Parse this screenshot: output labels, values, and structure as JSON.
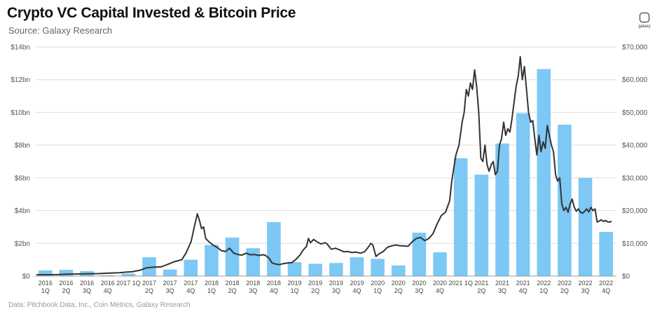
{
  "header": {
    "title": "Crypto VC Capital Invested & Bitcoin Price",
    "subtitle": "Source: Galaxy Research",
    "logo_text": "galaxy"
  },
  "footnote": "Data: Pitchbook Data, Inc., Coin Metrics, Galaxy Research",
  "colors": {
    "bar": "#7dc8f5",
    "line": "#333333",
    "grid": "#dddddd"
  },
  "chart_data": {
    "type": "bar",
    "title": "Crypto VC Capital Invested & Bitcoin Price",
    "subtitle": "Source: Galaxy Research",
    "y_left_ticks": [
      "$0",
      "$2bn",
      "$4bn",
      "$6bn",
      "$8bn",
      "$10bn",
      "$12bn",
      "$14bn"
    ],
    "y_right_ticks": [
      "$0",
      "$10,000",
      "$20,000",
      "$30,000",
      "$40,000",
      "$50,000",
      "$60,000",
      "$70,000"
    ],
    "ylim_left": [
      0,
      14
    ],
    "ylim_right": [
      0,
      70000
    ],
    "grid": true,
    "categories": [
      [
        "2016",
        "1Q"
      ],
      [
        "2016",
        "2Q"
      ],
      [
        "2016",
        "3Q"
      ],
      [
        "2016",
        "4Q"
      ],
      [
        "2017 1Q",
        ""
      ],
      [
        "2017",
        "2Q"
      ],
      [
        "2017",
        "3Q"
      ],
      [
        "2017",
        "4Q"
      ],
      [
        "2018",
        "1Q"
      ],
      [
        "2018",
        "2Q"
      ],
      [
        "2018",
        "3Q"
      ],
      [
        "2018",
        "4Q"
      ],
      [
        "2019",
        "1Q"
      ],
      [
        "2019",
        "2Q"
      ],
      [
        "2019",
        "3Q"
      ],
      [
        "2019",
        "4Q"
      ],
      [
        "2020",
        "1Q"
      ],
      [
        "2020",
        "2Q"
      ],
      [
        "2020",
        "3Q"
      ],
      [
        "2020",
        "4Q"
      ],
      [
        "2021 1Q",
        ""
      ],
      [
        "2021",
        "2Q"
      ],
      [
        "2021",
        "3Q"
      ],
      [
        "2021",
        "4Q"
      ],
      [
        "2022",
        "1Q"
      ],
      [
        "2022",
        "2Q"
      ],
      [
        "2022",
        "3Q"
      ],
      [
        "2022",
        "4Q"
      ]
    ],
    "series": [
      {
        "axis": "left",
        "kind": "bar",
        "values": [
          0.35,
          0.38,
          0.3,
          0.05,
          0.15,
          1.15,
          0.4,
          1.0,
          1.9,
          2.35,
          1.7,
          3.3,
          0.85,
          0.75,
          0.8,
          1.15,
          1.05,
          0.65,
          2.65,
          1.45,
          7.2,
          6.2,
          8.1,
          9.95,
          12.65,
          9.25,
          6.0,
          2.7
        ]
      },
      {
        "axis": "right",
        "kind": "line",
        "points": [
          [
            0.0,
            400
          ],
          [
            0.5,
            420
          ],
          [
            1.0,
            450
          ],
          [
            1.5,
            600
          ],
          [
            2.0,
            650
          ],
          [
            2.5,
            700
          ],
          [
            3.0,
            750
          ],
          [
            3.5,
            900
          ],
          [
            4.0,
            1000
          ],
          [
            4.3,
            1200
          ],
          [
            4.6,
            1300
          ],
          [
            5.0,
            1800
          ],
          [
            5.3,
            2500
          ],
          [
            5.6,
            2700
          ],
          [
            6.0,
            2800
          ],
          [
            6.3,
            3500
          ],
          [
            6.6,
            4300
          ],
          [
            7.0,
            5000
          ],
          [
            7.2,
            7000
          ],
          [
            7.45,
            10500
          ],
          [
            7.6,
            15000
          ],
          [
            7.75,
            19000
          ],
          [
            7.85,
            17000
          ],
          [
            7.95,
            14500
          ],
          [
            8.05,
            15000
          ],
          [
            8.15,
            11500
          ],
          [
            8.3,
            10500
          ],
          [
            8.5,
            9500
          ],
          [
            8.7,
            8800
          ],
          [
            8.9,
            7800
          ],
          [
            9.1,
            7500
          ],
          [
            9.3,
            8500
          ],
          [
            9.5,
            7000
          ],
          [
            9.7,
            6600
          ],
          [
            9.9,
            6400
          ],
          [
            10.1,
            7000
          ],
          [
            10.3,
            6500
          ],
          [
            10.5,
            6600
          ],
          [
            10.7,
            6300
          ],
          [
            10.9,
            6500
          ],
          [
            11.0,
            6400
          ],
          [
            11.2,
            5500
          ],
          [
            11.35,
            4000
          ],
          [
            11.5,
            3700
          ],
          [
            11.7,
            3500
          ],
          [
            11.9,
            3800
          ],
          [
            12.1,
            4000
          ],
          [
            12.3,
            4100
          ],
          [
            12.5,
            5100
          ],
          [
            12.7,
            6500
          ],
          [
            12.85,
            8000
          ],
          [
            13.0,
            9000
          ],
          [
            13.1,
            11500
          ],
          [
            13.2,
            10200
          ],
          [
            13.35,
            11200
          ],
          [
            13.5,
            10500
          ],
          [
            13.7,
            9800
          ],
          [
            13.9,
            10200
          ],
          [
            14.0,
            9800
          ],
          [
            14.2,
            8200
          ],
          [
            14.4,
            8500
          ],
          [
            14.6,
            8000
          ],
          [
            14.8,
            7400
          ],
          [
            15.0,
            7500
          ],
          [
            15.2,
            7200
          ],
          [
            15.4,
            7300
          ],
          [
            15.6,
            7000
          ],
          [
            15.8,
            7400
          ],
          [
            16.0,
            9000
          ],
          [
            16.1,
            10000
          ],
          [
            16.2,
            9500
          ],
          [
            16.35,
            6000
          ],
          [
            16.5,
            6800
          ],
          [
            16.7,
            7500
          ],
          [
            16.9,
            8800
          ],
          [
            17.1,
            9200
          ],
          [
            17.3,
            9500
          ],
          [
            17.5,
            9300
          ],
          [
            17.7,
            9200
          ],
          [
            17.9,
            9100
          ],
          [
            18.1,
            10500
          ],
          [
            18.3,
            11500
          ],
          [
            18.5,
            11800
          ],
          [
            18.7,
            10800
          ],
          [
            18.9,
            11500
          ],
          [
            19.1,
            13000
          ],
          [
            19.3,
            16000
          ],
          [
            19.5,
            18500
          ],
          [
            19.7,
            19500
          ],
          [
            19.9,
            23000
          ],
          [
            20.0,
            29000
          ],
          [
            20.1,
            33000
          ],
          [
            20.2,
            37000
          ],
          [
            20.35,
            40000
          ],
          [
            20.5,
            47000
          ],
          [
            20.6,
            50000
          ],
          [
            20.7,
            57000
          ],
          [
            20.8,
            55000
          ],
          [
            20.9,
            59000
          ],
          [
            21.0,
            57000
          ],
          [
            21.1,
            63000
          ],
          [
            21.2,
            58000
          ],
          [
            21.3,
            50000
          ],
          [
            21.4,
            36000
          ],
          [
            21.5,
            35000
          ],
          [
            21.6,
            40000
          ],
          [
            21.7,
            34000
          ],
          [
            21.8,
            32000
          ],
          [
            21.9,
            34000
          ],
          [
            22.0,
            35000
          ],
          [
            22.1,
            31000
          ],
          [
            22.2,
            32000
          ],
          [
            22.3,
            40000
          ],
          [
            22.4,
            42000
          ],
          [
            22.5,
            47000
          ],
          [
            22.6,
            43000
          ],
          [
            22.7,
            45000
          ],
          [
            22.8,
            44000
          ],
          [
            22.9,
            48000
          ],
          [
            23.0,
            53000
          ],
          [
            23.1,
            58000
          ],
          [
            23.2,
            61000
          ],
          [
            23.3,
            67000
          ],
          [
            23.4,
            60000
          ],
          [
            23.5,
            64000
          ],
          [
            23.6,
            57000
          ],
          [
            23.7,
            50000
          ],
          [
            23.8,
            47000
          ],
          [
            23.9,
            47500
          ],
          [
            24.0,
            42000
          ],
          [
            24.1,
            37000
          ],
          [
            24.2,
            43000
          ],
          [
            24.3,
            38000
          ],
          [
            24.4,
            41000
          ],
          [
            24.5,
            39000
          ],
          [
            24.6,
            46000
          ],
          [
            24.7,
            43000
          ],
          [
            24.8,
            40000
          ],
          [
            24.9,
            38000
          ],
          [
            25.0,
            31000
          ],
          [
            25.1,
            29000
          ],
          [
            25.2,
            30000
          ],
          [
            25.3,
            22000
          ],
          [
            25.4,
            20000
          ],
          [
            25.5,
            21000
          ],
          [
            25.6,
            19500
          ],
          [
            25.7,
            22000
          ],
          [
            25.8,
            23500
          ],
          [
            25.9,
            21000
          ],
          [
            26.0,
            19800
          ],
          [
            26.1,
            20500
          ],
          [
            26.2,
            19500
          ],
          [
            26.3,
            19200
          ],
          [
            26.4,
            19800
          ],
          [
            26.5,
            20500
          ],
          [
            26.6,
            19600
          ],
          [
            26.7,
            21000
          ],
          [
            26.8,
            20000
          ],
          [
            26.9,
            20500
          ],
          [
            27.0,
            16500
          ],
          [
            27.1,
            16800
          ],
          [
            27.2,
            17200
          ],
          [
            27.3,
            16700
          ],
          [
            27.4,
            17000
          ],
          [
            27.5,
            16600
          ],
          [
            27.6,
            16500
          ],
          [
            27.7,
            16700
          ]
        ]
      }
    ]
  }
}
